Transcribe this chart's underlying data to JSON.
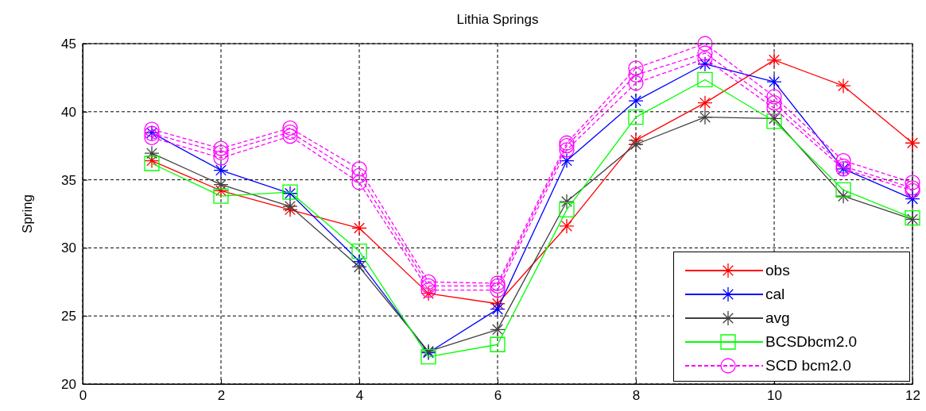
{
  "chart_data": {
    "type": "line",
    "title": "Lithia Springs",
    "ylabel": "Spring",
    "x": [
      1,
      2,
      3,
      4,
      5,
      6,
      7,
      8,
      9,
      10,
      11,
      12
    ],
    "xlim": [
      0,
      12
    ],
    "xticks": [
      0,
      2,
      4,
      6,
      8,
      10,
      12
    ],
    "ylim": [
      20,
      45
    ],
    "yticks": [
      20,
      25,
      30,
      35,
      40,
      45
    ],
    "grid": true,
    "legend": "bottom right",
    "series": [
      {
        "name": "obs",
        "color": "#ff0000",
        "marker": "cross",
        "line_style": "solid",
        "values": [
          36.4,
          34.2,
          32.8,
          31.45,
          26.65,
          25.9,
          31.6,
          37.9,
          40.65,
          43.8,
          41.9,
          37.7
        ]
      },
      {
        "name": "cal",
        "color": "#0000ff",
        "marker": "cross",
        "line_style": "solid",
        "values": [
          38.45,
          35.7,
          34.0,
          29.0,
          22.3,
          25.5,
          36.4,
          40.8,
          43.5,
          42.2,
          35.8,
          33.6
        ]
      },
      {
        "name": "avg",
        "color": "#404040",
        "marker": "cross",
        "line_style": "solid",
        "values": [
          36.95,
          34.65,
          33.05,
          28.6,
          22.4,
          24.0,
          33.4,
          37.6,
          39.6,
          39.5,
          33.8,
          32.1
        ]
      },
      {
        "name": "BCSDbcm2.0",
        "color": "#00ff00",
        "marker": "square",
        "line_style": "solid",
        "values": [
          36.2,
          33.8,
          34.1,
          29.75,
          22.0,
          22.9,
          32.8,
          39.6,
          42.35,
          39.3,
          34.25,
          32.2
        ]
      },
      {
        "name": "SCD bcm2.0",
        "color": "#ff00ff",
        "marker": "circle",
        "line_style": "dashed",
        "values": [
          38.7,
          37.3,
          38.8,
          35.8,
          27.5,
          27.4,
          37.7,
          43.2,
          45.0,
          41.1,
          36.4,
          34.8
        ]
      },
      {
        "color": "#ff00ff",
        "marker": "circle",
        "line_style": "dashed",
        "values": [
          38.4,
          37.0,
          38.5,
          35.3,
          27.2,
          27.2,
          37.5,
          42.7,
          44.3,
          40.65,
          36.0,
          34.4
        ]
      },
      {
        "color": "#ff00ff",
        "marker": "circle",
        "line_style": "dashed",
        "values": [
          38.1,
          36.6,
          38.2,
          34.8,
          26.9,
          26.9,
          37.2,
          42.1,
          43.9,
          40.25,
          35.8,
          34.2
        ]
      }
    ]
  }
}
